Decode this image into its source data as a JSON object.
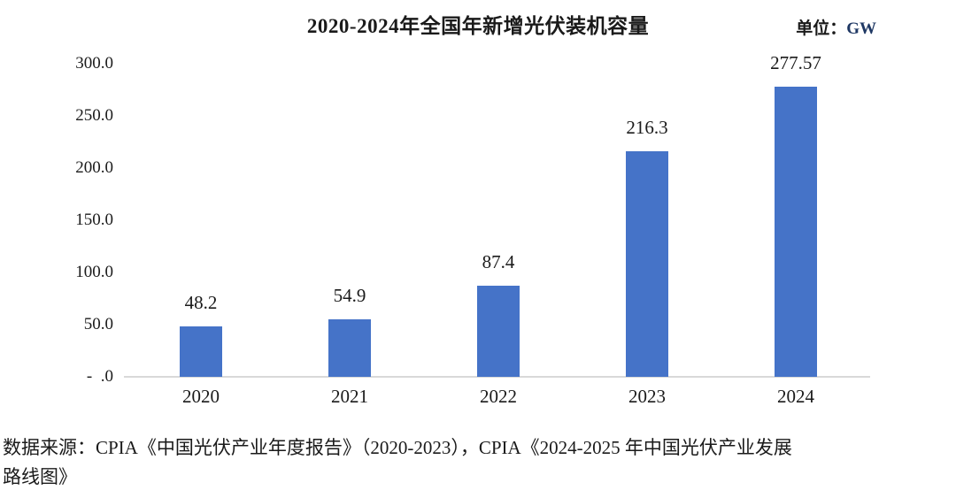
{
  "chart_data": {
    "type": "bar",
    "title": "2020-2024年全国年新增光伏装机容量",
    "unit_prefix": "单位：",
    "unit_value": "GW",
    "categories": [
      "2020",
      "2021",
      "2022",
      "2023",
      "2024"
    ],
    "values": [
      48.2,
      54.9,
      87.4,
      216.3,
      277.57
    ],
    "value_labels": [
      "48.2",
      "54.9",
      "87.4",
      "216.3",
      "277.57"
    ],
    "xlabel": "",
    "ylabel": "",
    "ylim": [
      0,
      300
    ],
    "ytick_interval": 50,
    "yticks": [
      {
        "value": 300,
        "label": "300.0"
      },
      {
        "value": 250,
        "label": "250.0"
      },
      {
        "value": 200,
        "label": "200.0"
      },
      {
        "value": 150,
        "label": "150.0"
      },
      {
        "value": 100,
        "label": "100.0"
      },
      {
        "value": 50,
        "label": "50.0"
      },
      {
        "value": 0,
        "label": "-  .0"
      }
    ],
    "grid": false,
    "legend": null,
    "colors": {
      "bar": "#4573c8",
      "axis_line": "#d9d9d9",
      "text": "#1a1a1a",
      "unit_value_text": "#1f3864"
    }
  },
  "source": {
    "line1": "数据来源：CPIA《中国光伏产业年度报告》（2020-2023），CPIA《2024-2025 年中国光伏产业发展",
    "line2": "路线图》"
  }
}
